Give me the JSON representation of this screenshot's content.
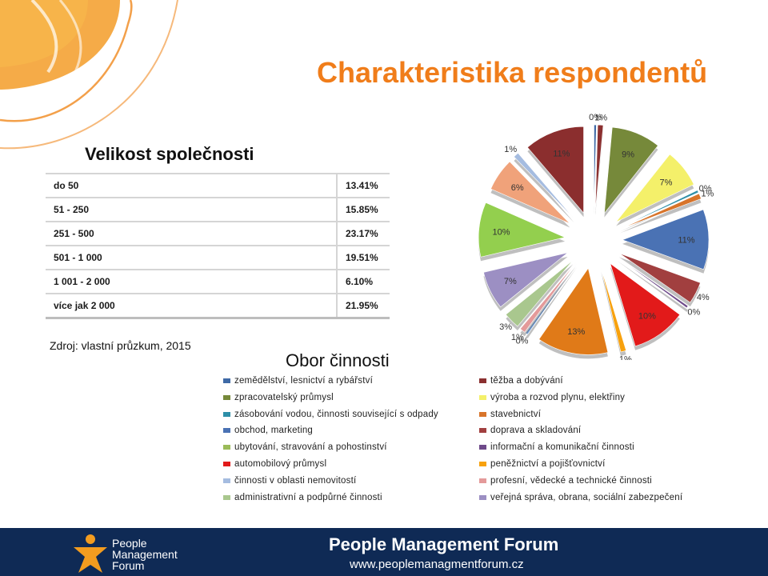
{
  "slide": {
    "title": "Charakteristika respondentů",
    "company_size_heading": "Velikost společnosti",
    "source": "Zdroj: vlastní průzkum, 2015",
    "industry_heading": "Obor činnosti"
  },
  "size_table": [
    {
      "label": "do 50",
      "value": "13.41%"
    },
    {
      "label": "51 - 250",
      "value": "15.85%"
    },
    {
      "label": "251 - 500",
      "value": "23.17%"
    },
    {
      "label": "501 - 1 000",
      "value": "19.51%"
    },
    {
      "label": "1 001 - 2 000",
      "value": "6.10%"
    },
    {
      "label": "více jak 2 000",
      "value": "21.95%"
    }
  ],
  "chart_data": {
    "type": "pie",
    "title": "Obor činnosti",
    "slices": [
      {
        "name": "zemědělství, lesnictví a rybářství",
        "value": 0,
        "color": "#3f6aa6"
      },
      {
        "name": "těžba a dobývání",
        "value": 1,
        "color": "#8b3030"
      },
      {
        "name": "zpracovatelský průmysl",
        "value": 9,
        "color": "#76893a"
      },
      {
        "name": "výroba a rozvod plynu, elektřiny",
        "value": 7,
        "color": "#f4f06a"
      },
      {
        "name": "zásobování vodou, činnosti související s odpady",
        "value": 0,
        "color": "#2e8fa8"
      },
      {
        "name": "stavebnictví",
        "value": 1,
        "color": "#d8742a"
      },
      {
        "name": "obchod, marketing",
        "value": 11,
        "color": "#4a72b4"
      },
      {
        "name": "doprava a skladování",
        "value": 4,
        "color": "#a13f3f"
      },
      {
        "name": "informační a komunikační činnosti",
        "value": 0,
        "color": "#6e4a8a"
      },
      {
        "name": "automobilový průmysl",
        "value": 10,
        "color": "#e21a1a"
      },
      {
        "name": "peněžnictví a pojišťovnictví",
        "value": 1,
        "color": "#f7a10e"
      },
      {
        "name": "",
        "value": 13,
        "color": "#e07a18"
      },
      {
        "name": "",
        "value": 0,
        "color": "#7aa3d8"
      },
      {
        "name": "profesní, vědecké a technické činnosti",
        "value": 1,
        "color": "#e49a9a"
      },
      {
        "name": "administrativní a podpůrné činnosti",
        "value": 3,
        "color": "#a9c78e"
      },
      {
        "name": "veřejná správa, obrana, sociální zabezpečení",
        "value": 7,
        "color": "#9c8fc3"
      },
      {
        "name": "",
        "value": 10,
        "color": "#93cf4e"
      },
      {
        "name": "",
        "value": 6,
        "color": "#f0a27a"
      },
      {
        "name": "činnosti v oblasti nemovitostí",
        "value": 1,
        "color": "#a5bce0"
      },
      {
        "name": "",
        "value": 11,
        "color": "#8b2e2e"
      }
    ],
    "legend_columns": [
      [
        {
          "name": "zemědělství, lesnictví a rybářství",
          "color": "#3f6aa6"
        },
        {
          "name": "zpracovatelský průmysl",
          "color": "#76893a"
        },
        {
          "name": "zásobování vodou, činnosti související s odpady",
          "color": "#2e8fa8"
        },
        {
          "name": "obchod, marketing",
          "color": "#4a72b4"
        },
        {
          "name": "ubytování, stravování a pohostinství",
          "color": "#9bbb59"
        },
        {
          "name": "automobilový průmysl",
          "color": "#e21a1a"
        },
        {
          "name": "činnosti v oblasti nemovitostí",
          "color": "#a5bce0"
        },
        {
          "name": "administrativní a podpůrné činnosti",
          "color": "#a9c78e"
        }
      ],
      [
        {
          "name": "těžba a dobývání",
          "color": "#8b3030"
        },
        {
          "name": "výroba a rozvod plynu, elektřiny",
          "color": "#f4f06a"
        },
        {
          "name": "stavebnictví",
          "color": "#d8742a"
        },
        {
          "name": "doprava a skladování",
          "color": "#a13f3f"
        },
        {
          "name": "informační a komunikační činnosti",
          "color": "#6e4a8a"
        },
        {
          "name": "peněžnictví a pojišťovnictví",
          "color": "#f7a10e"
        },
        {
          "name": "profesní, vědecké a technické činnosti",
          "color": "#e49a9a"
        },
        {
          "name": "veřejná správa, obrana, sociální zabezpečení",
          "color": "#9c8fc3"
        }
      ]
    ]
  },
  "footer": {
    "logo_lines": [
      "People",
      "Management",
      "Forum"
    ],
    "name": "People Management Forum",
    "url": "www.peoplemanagmentforum.cz"
  },
  "colors": {
    "accent": "#f07d1a",
    "footer_bg": "#0f2a55"
  }
}
